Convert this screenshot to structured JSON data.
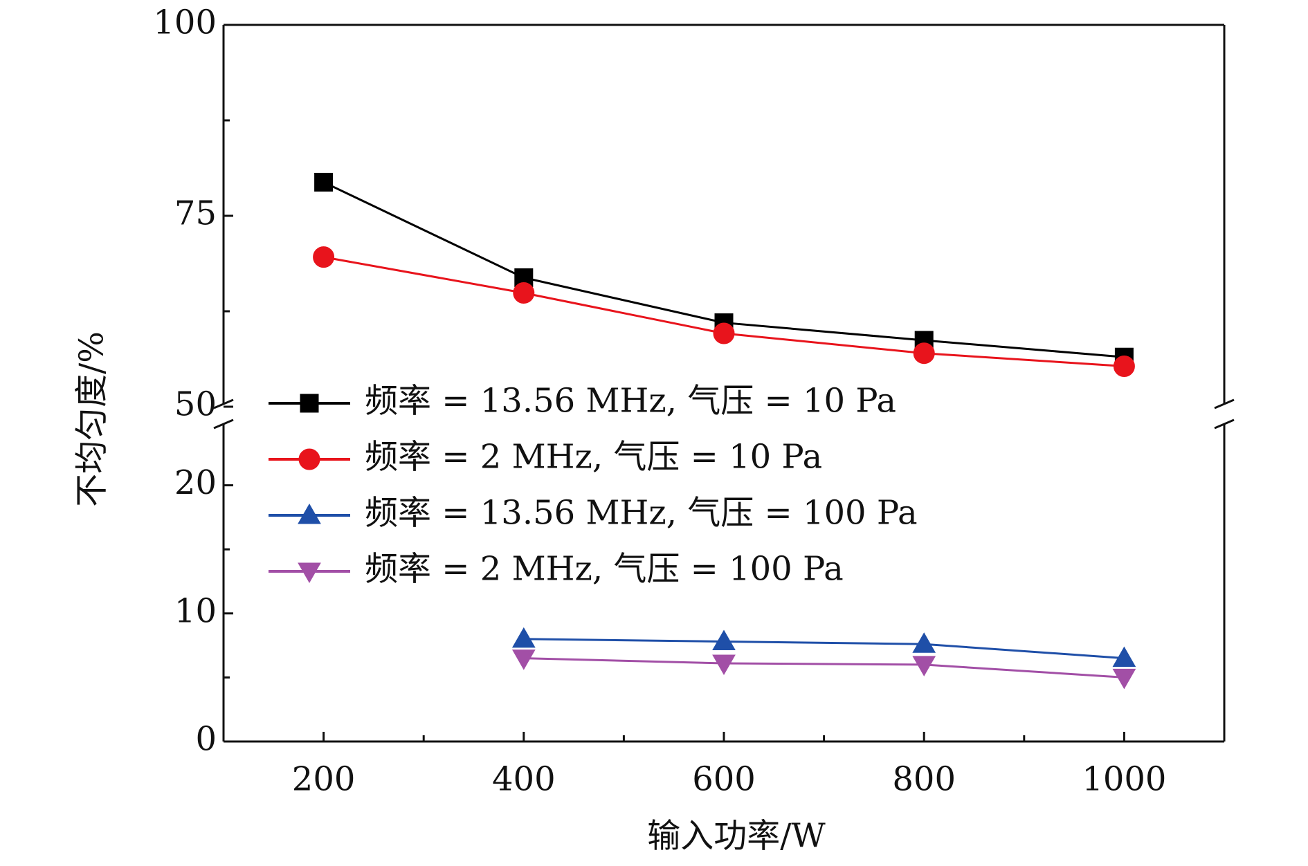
{
  "chart_data": {
    "type": "line",
    "xlabel": "输入功率/W",
    "ylabel": "不均匀度/%",
    "xlim": [
      100,
      1100
    ],
    "xticks": [
      200,
      400,
      600,
      800,
      1000
    ],
    "xminor": [
      300,
      500,
      700,
      900
    ],
    "ylim": [
      0,
      100
    ],
    "ybreak": [
      25,
      50
    ],
    "yticks": [
      0,
      10,
      20,
      50,
      75,
      100
    ],
    "yminor": [
      5,
      15,
      62.5,
      87.5
    ],
    "x": [
      200,
      400,
      600,
      800,
      1000
    ],
    "legend": "center-left",
    "series": [
      {
        "name": "频率 = 13.56 MHz, 气压 = 10 Pa",
        "color": "#000000",
        "marker": "square",
        "values": [
          79.4,
          66.9,
          61.0,
          58.7,
          56.5
        ]
      },
      {
        "name": "频率 = 2 MHz, 气压 = 10 Pa",
        "color": "#e8141c",
        "marker": "circle",
        "values": [
          69.6,
          64.9,
          59.6,
          57.0,
          55.3
        ]
      },
      {
        "name": "频率 = 13.56 MHz, 气压 = 100 Pa",
        "color": "#1f4fa8",
        "marker": "triangle-up",
        "values": [
          null,
          8.0,
          7.8,
          7.6,
          6.5
        ]
      },
      {
        "name": "频率 = 2 MHz, 气压 = 100 Pa",
        "color": "#a24fa6",
        "marker": "triangle-down",
        "values": [
          null,
          6.5,
          6.1,
          6.0,
          5.0
        ]
      }
    ]
  }
}
